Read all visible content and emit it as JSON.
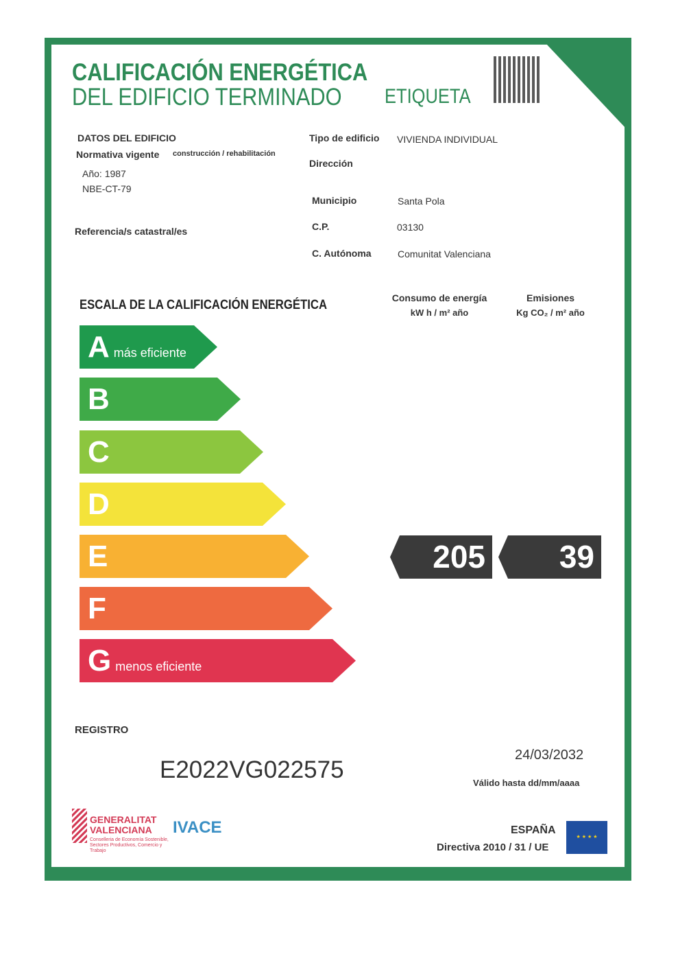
{
  "header": {
    "title_line1": "CALIFICACIÓN ENERGÉTICA",
    "title_line2": "DEL EDIFICIO  TERMINADO",
    "label": "ETIQUETA",
    "qr_icon": "qr-code-icon"
  },
  "building": {
    "section_title": "DATOS DEL EDIFICIO",
    "normativa_label": "Normativa vigente",
    "normativa_sub": "construcción / rehabilitación",
    "year": "Año: 1987",
    "norm": "NBE-CT-79",
    "cadastral_label": "Referencia/s catastral/es",
    "type_label": "Tipo de edificio",
    "type_value": "VIVIENDA INDIVIDUAL",
    "address_label": "Dirección",
    "municipality_label": "Municipio",
    "municipality_value": "Santa Pola",
    "postal_label": "C.P.",
    "postal_value": "03130",
    "region_label": "C. Autónoma",
    "region_value": "Comunitat Valenciana"
  },
  "scale": {
    "title": "ESCALA DE LA CALIFICACIÓN ENERGÉTICA",
    "energy_header": "Consumo de energía",
    "energy_unit": "kW h / m² año",
    "emissions_header": "Emisiones",
    "emissions_unit": "Kg CO₂ / m² año",
    "classes": [
      {
        "letter": "A",
        "note": "más eficiente",
        "color": "#1f9a4d"
      },
      {
        "letter": "B",
        "note": "",
        "color": "#3faa48"
      },
      {
        "letter": "C",
        "note": "",
        "color": "#8cc63f"
      },
      {
        "letter": "D",
        "note": "",
        "color": "#f4e33a"
      },
      {
        "letter": "E",
        "note": "",
        "color": "#f8b133"
      },
      {
        "letter": "F",
        "note": "",
        "color": "#ee6a40"
      },
      {
        "letter": "G",
        "note": "menos eficiente",
        "color": "#e03550"
      }
    ],
    "energy_value": "205",
    "emissions_value": "39",
    "rating_class": "E"
  },
  "registry": {
    "label": "REGISTRO",
    "code": "E2022VG022575",
    "valid_date": "24/03/2032",
    "valid_label": "Válido hasta dd/mm/aaaa"
  },
  "footer": {
    "gv_line1": "GENERALITAT",
    "gv_line2": "VALENCIANA",
    "gv_sub": "Conselleria de Economía Sostenible, Sectores Productivos, Comercio y Trabajo",
    "ivace": "IVACE",
    "country": "ESPAÑA",
    "directive": "Directiva 2010 / 31 / UE"
  }
}
